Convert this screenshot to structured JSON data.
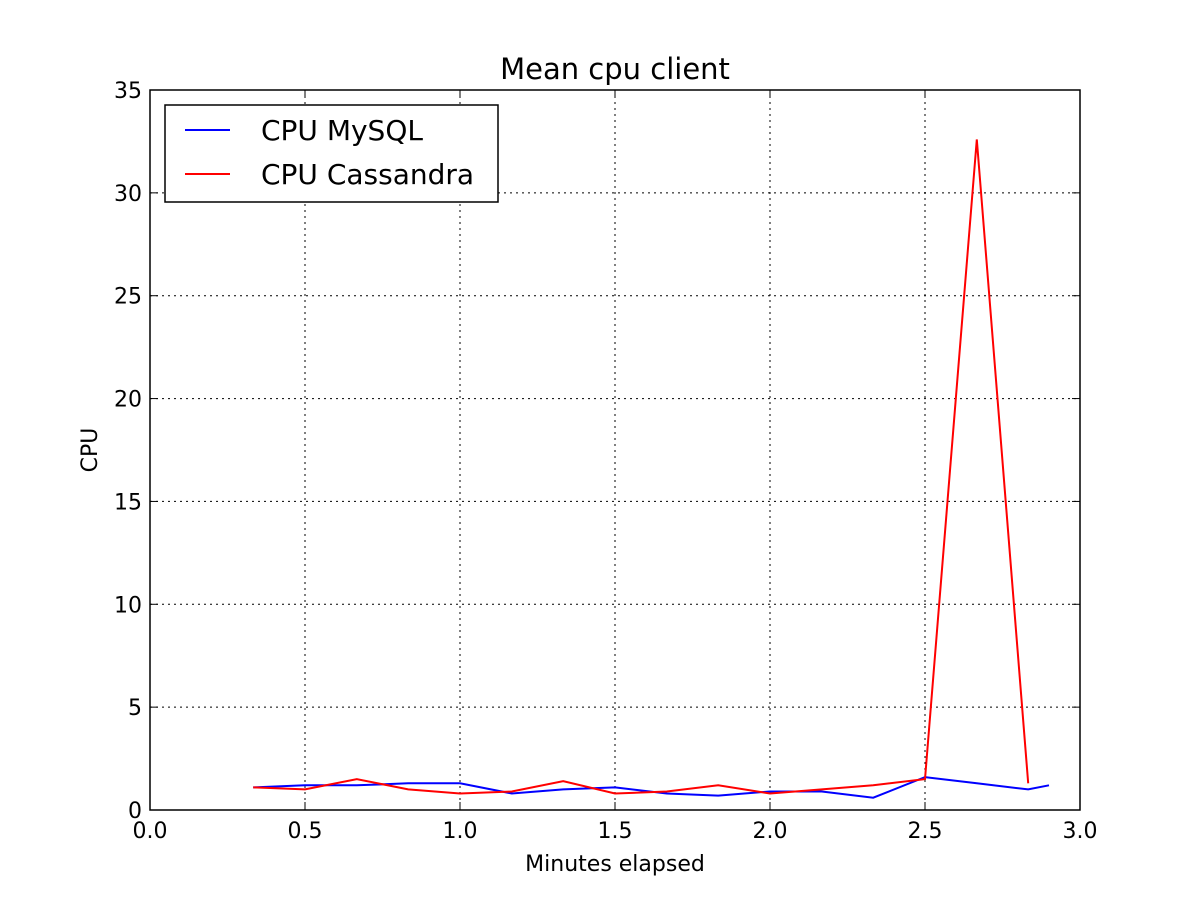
{
  "chart_data": {
    "type": "line",
    "title": "Mean cpu client",
    "xlabel": "Minutes elapsed",
    "ylabel": "CPU",
    "xlim": [
      0.0,
      3.0
    ],
    "ylim": [
      0,
      35
    ],
    "xticks": [
      "0.0",
      "0.5",
      "1.0",
      "1.5",
      "2.0",
      "2.5",
      "3.0"
    ],
    "yticks": [
      "0",
      "5",
      "10",
      "15",
      "20",
      "25",
      "30",
      "35"
    ],
    "grid": true,
    "legend_position": "top-left",
    "series": [
      {
        "name": "CPU MySQL",
        "color": "#0000ff",
        "x": [
          0.333,
          0.5,
          0.667,
          0.833,
          1.0,
          1.167,
          1.333,
          1.5,
          1.667,
          1.833,
          2.0,
          2.167,
          2.333,
          2.5,
          2.667,
          2.833,
          2.9
        ],
        "y": [
          1.1,
          1.2,
          1.2,
          1.3,
          1.3,
          0.8,
          1.0,
          1.1,
          0.8,
          0.7,
          0.9,
          0.9,
          0.6,
          1.6,
          1.3,
          1.0,
          1.2
        ]
      },
      {
        "name": "CPU Cassandra",
        "color": "#ff0000",
        "x": [
          0.333,
          0.5,
          0.667,
          0.833,
          1.0,
          1.167,
          1.333,
          1.5,
          1.667,
          1.833,
          2.0,
          2.167,
          2.333,
          2.5,
          2.667,
          2.833
        ],
        "y": [
          1.1,
          1.0,
          1.5,
          1.0,
          0.8,
          0.9,
          1.4,
          0.8,
          0.9,
          1.2,
          0.8,
          1.0,
          1.2,
          1.5,
          32.6,
          1.3
        ]
      }
    ]
  }
}
